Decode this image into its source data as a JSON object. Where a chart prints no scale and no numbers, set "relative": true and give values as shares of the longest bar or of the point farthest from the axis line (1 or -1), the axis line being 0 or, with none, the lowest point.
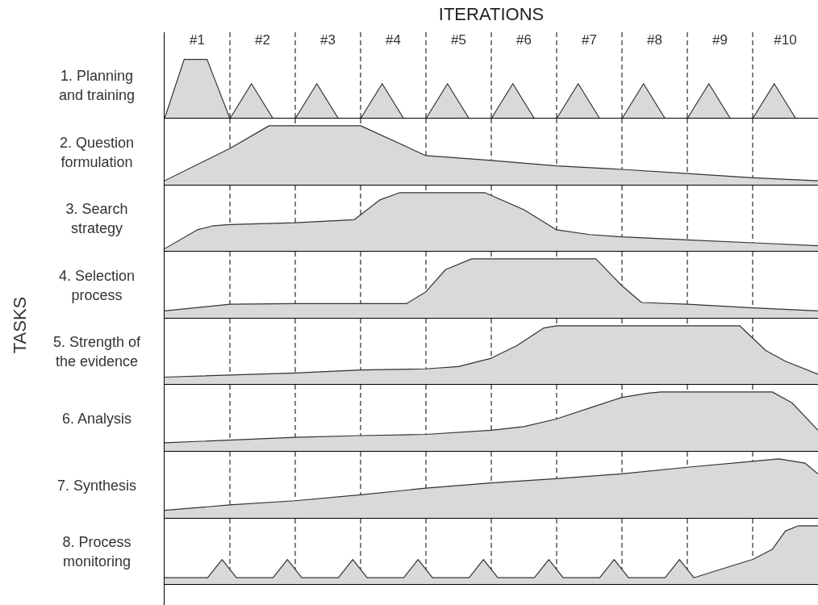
{
  "chart_data": [
    {
      "type": "area",
      "relative": true,
      "ylabel": "1. Planning and training",
      "xlabel": "ITERATIONS",
      "annotations": [
        "TASKS"
      ],
      "xlim": [
        0,
        10
      ],
      "xticks": [
        {
          "value": 0.5,
          "label": "#1"
        },
        {
          "value": 1.5,
          "label": "#2"
        },
        {
          "value": 2.5,
          "label": "#3"
        },
        {
          "value": 3.5,
          "label": "#4"
        },
        {
          "value": 4.5,
          "label": "#5"
        },
        {
          "value": 5.5,
          "label": "#6"
        },
        {
          "value": 6.5,
          "label": "#7"
        },
        {
          "value": 7.5,
          "label": "#8"
        },
        {
          "value": 8.5,
          "label": "#9"
        },
        {
          "value": 9.5,
          "label": "#10"
        }
      ],
      "tick_labels": "x",
      "color": "#d9d9d9",
      "ref_lines": [
        {
          "axis": "x",
          "value": 1,
          "line_style": "dashed"
        },
        {
          "axis": "x",
          "value": 2,
          "line_style": "dashed"
        },
        {
          "axis": "x",
          "value": 3,
          "line_style": "dashed"
        },
        {
          "axis": "x",
          "value": 4,
          "line_style": "dashed"
        },
        {
          "axis": "x",
          "value": 5,
          "line_style": "dashed"
        },
        {
          "axis": "x",
          "value": 6,
          "line_style": "dashed"
        },
        {
          "axis": "x",
          "value": 7,
          "line_style": "dashed"
        },
        {
          "axis": "x",
          "value": 8,
          "line_style": "dashed"
        },
        {
          "axis": "x",
          "value": 9,
          "line_style": "dashed"
        }
      ],
      "x": [
        0,
        0.3,
        0.65,
        1,
        1.33,
        1.66,
        2,
        2.33,
        2.66,
        3,
        3.33,
        3.66,
        4,
        4.33,
        4.66,
        5,
        5.33,
        5.66,
        6,
        6.33,
        6.66,
        7,
        7.33,
        7.66,
        8,
        8.33,
        8.66,
        9,
        9.33,
        9.66,
        10
      ],
      "values": [
        0,
        1,
        1,
        0,
        0.59,
        0,
        0,
        0.59,
        0,
        0,
        0.59,
        0,
        0,
        0.59,
        0,
        0,
        0.59,
        0,
        0,
        0.59,
        0,
        0,
        0.59,
        0,
        0,
        0.59,
        0,
        0,
        0.59,
        0,
        0
      ]
    },
    {
      "type": "area",
      "relative": true,
      "ylabel": "2. Question formulation",
      "xlim": [
        0,
        10
      ],
      "tick_labels": false,
      "color": "#d9d9d9",
      "ref_lines": [
        {
          "axis": "x",
          "value": 1,
          "line_style": "dashed"
        },
        {
          "axis": "x",
          "value": 2,
          "line_style": "dashed"
        },
        {
          "axis": "x",
          "value": 3,
          "line_style": "dashed"
        },
        {
          "axis": "x",
          "value": 4,
          "line_style": "dashed"
        },
        {
          "axis": "x",
          "value": 5,
          "line_style": "dashed"
        },
        {
          "axis": "x",
          "value": 6,
          "line_style": "dashed"
        },
        {
          "axis": "x",
          "value": 7,
          "line_style": "dashed"
        },
        {
          "axis": "x",
          "value": 8,
          "line_style": "dashed"
        },
        {
          "axis": "x",
          "value": 9,
          "line_style": "dashed"
        }
      ],
      "x": [
        0,
        1,
        1.6,
        3,
        4,
        5,
        6,
        7,
        8,
        9,
        10
      ],
      "values": [
        0.08,
        0.62,
        1,
        1,
        0.5,
        0.42,
        0.33,
        0.27,
        0.2,
        0.13,
        0.08
      ]
    },
    {
      "type": "area",
      "relative": true,
      "ylabel": "3. Search strategy",
      "xlim": [
        0,
        10
      ],
      "tick_labels": false,
      "color": "#d9d9d9",
      "ref_lines": [
        {
          "axis": "x",
          "value": 1,
          "line_style": "dashed"
        },
        {
          "axis": "x",
          "value": 2,
          "line_style": "dashed"
        },
        {
          "axis": "x",
          "value": 3,
          "line_style": "dashed"
        },
        {
          "axis": "x",
          "value": 4,
          "line_style": "dashed"
        },
        {
          "axis": "x",
          "value": 5,
          "line_style": "dashed"
        },
        {
          "axis": "x",
          "value": 6,
          "line_style": "dashed"
        },
        {
          "axis": "x",
          "value": 7,
          "line_style": "dashed"
        },
        {
          "axis": "x",
          "value": 8,
          "line_style": "dashed"
        },
        {
          "axis": "x",
          "value": 9,
          "line_style": "dashed"
        }
      ],
      "x": [
        0,
        0.5,
        0.75,
        1,
        2,
        2.9,
        3.3,
        3.6,
        4.9,
        5.5,
        6,
        6.5,
        7,
        8,
        9,
        10
      ],
      "values": [
        0.05,
        0.37,
        0.44,
        0.46,
        0.49,
        0.54,
        0.88,
        1,
        1,
        0.71,
        0.37,
        0.29,
        0.25,
        0.2,
        0.15,
        0.1
      ]
    },
    {
      "type": "area",
      "relative": true,
      "ylabel": "4. Selection process",
      "xlim": [
        0,
        10
      ],
      "tick_labels": false,
      "color": "#d9d9d9",
      "ref_lines": [
        {
          "axis": "x",
          "value": 1,
          "line_style": "dashed"
        },
        {
          "axis": "x",
          "value": 2,
          "line_style": "dashed"
        },
        {
          "axis": "x",
          "value": 3,
          "line_style": "dashed"
        },
        {
          "axis": "x",
          "value": 4,
          "line_style": "dashed"
        },
        {
          "axis": "x",
          "value": 5,
          "line_style": "dashed"
        },
        {
          "axis": "x",
          "value": 6,
          "line_style": "dashed"
        },
        {
          "axis": "x",
          "value": 7,
          "line_style": "dashed"
        },
        {
          "axis": "x",
          "value": 8,
          "line_style": "dashed"
        },
        {
          "axis": "x",
          "value": 9,
          "line_style": "dashed"
        }
      ],
      "x": [
        0,
        1,
        2,
        3.7,
        4,
        4.3,
        4.7,
        6.6,
        7,
        7.3,
        8,
        9,
        10
      ],
      "values": [
        0.13,
        0.24,
        0.25,
        0.25,
        0.45,
        0.82,
        1,
        1,
        0.55,
        0.27,
        0.24,
        0.18,
        0.13
      ]
    },
    {
      "type": "area",
      "relative": true,
      "ylabel": "5. Strength of the evidence",
      "xlim": [
        0,
        10
      ],
      "tick_labels": false,
      "color": "#d9d9d9",
      "ref_lines": [
        {
          "axis": "x",
          "value": 1,
          "line_style": "dashed"
        },
        {
          "axis": "x",
          "value": 2,
          "line_style": "dashed"
        },
        {
          "axis": "x",
          "value": 3,
          "line_style": "dashed"
        },
        {
          "axis": "x",
          "value": 4,
          "line_style": "dashed"
        },
        {
          "axis": "x",
          "value": 5,
          "line_style": "dashed"
        },
        {
          "axis": "x",
          "value": 6,
          "line_style": "dashed"
        },
        {
          "axis": "x",
          "value": 7,
          "line_style": "dashed"
        },
        {
          "axis": "x",
          "value": 8,
          "line_style": "dashed"
        },
        {
          "axis": "x",
          "value": 9,
          "line_style": "dashed"
        }
      ],
      "x": [
        0,
        2,
        3,
        4,
        4.5,
        5,
        5.4,
        5.8,
        6,
        8.8,
        9.2,
        9.5,
        10
      ],
      "values": [
        0.13,
        0.2,
        0.25,
        0.27,
        0.31,
        0.45,
        0.67,
        0.96,
        1,
        1,
        0.58,
        0.4,
        0.18
      ]
    },
    {
      "type": "area",
      "relative": true,
      "ylabel": "6. Analysis",
      "xlim": [
        0,
        10
      ],
      "tick_labels": false,
      "color": "#d9d9d9",
      "ref_lines": [
        {
          "axis": "x",
          "value": 1,
          "line_style": "dashed"
        },
        {
          "axis": "x",
          "value": 2,
          "line_style": "dashed"
        },
        {
          "axis": "x",
          "value": 3,
          "line_style": "dashed"
        },
        {
          "axis": "x",
          "value": 4,
          "line_style": "dashed"
        },
        {
          "axis": "x",
          "value": 5,
          "line_style": "dashed"
        },
        {
          "axis": "x",
          "value": 6,
          "line_style": "dashed"
        },
        {
          "axis": "x",
          "value": 7,
          "line_style": "dashed"
        },
        {
          "axis": "x",
          "value": 8,
          "line_style": "dashed"
        },
        {
          "axis": "x",
          "value": 9,
          "line_style": "dashed"
        }
      ],
      "x": [
        0,
        2,
        3,
        4,
        5,
        5.5,
        6,
        6.5,
        7,
        7.4,
        7.6,
        9.3,
        9.6,
        10
      ],
      "values": [
        0.15,
        0.24,
        0.27,
        0.29,
        0.36,
        0.42,
        0.55,
        0.73,
        0.91,
        0.98,
        1,
        1,
        0.82,
        0.36
      ]
    },
    {
      "type": "area",
      "relative": true,
      "ylabel": "7. Synthesis",
      "xlim": [
        0,
        10
      ],
      "tick_labels": false,
      "color": "#d9d9d9",
      "ref_lines": [
        {
          "axis": "x",
          "value": 1,
          "line_style": "dashed"
        },
        {
          "axis": "x",
          "value": 2,
          "line_style": "dashed"
        },
        {
          "axis": "x",
          "value": 3,
          "line_style": "dashed"
        },
        {
          "axis": "x",
          "value": 4,
          "line_style": "dashed"
        },
        {
          "axis": "x",
          "value": 5,
          "line_style": "dashed"
        },
        {
          "axis": "x",
          "value": 6,
          "line_style": "dashed"
        },
        {
          "axis": "x",
          "value": 7,
          "line_style": "dashed"
        },
        {
          "axis": "x",
          "value": 8,
          "line_style": "dashed"
        },
        {
          "axis": "x",
          "value": 9,
          "line_style": "dashed"
        }
      ],
      "x": [
        0,
        1,
        2,
        3,
        4,
        5,
        6,
        7,
        8,
        9,
        9.4,
        9.8,
        10
      ],
      "values": [
        0.14,
        0.23,
        0.3,
        0.4,
        0.51,
        0.6,
        0.67,
        0.75,
        0.86,
        0.96,
        1,
        0.93,
        0.75
      ]
    },
    {
      "type": "area",
      "relative": true,
      "ylabel": "8. Process monitoring",
      "xlim": [
        0,
        10
      ],
      "tick_labels": false,
      "color": "#d9d9d9",
      "ref_lines": [
        {
          "axis": "x",
          "value": 1,
          "line_style": "dashed"
        },
        {
          "axis": "x",
          "value": 2,
          "line_style": "dashed"
        },
        {
          "axis": "x",
          "value": 3,
          "line_style": "dashed"
        },
        {
          "axis": "x",
          "value": 4,
          "line_style": "dashed"
        },
        {
          "axis": "x",
          "value": 5,
          "line_style": "dashed"
        },
        {
          "axis": "x",
          "value": 6,
          "line_style": "dashed"
        },
        {
          "axis": "x",
          "value": 7,
          "line_style": "dashed"
        },
        {
          "axis": "x",
          "value": 8,
          "line_style": "dashed"
        },
        {
          "axis": "x",
          "value": 9,
          "line_style": "dashed"
        }
      ],
      "x": [
        0,
        0.66,
        0.88,
        1.1,
        1.66,
        1.88,
        2.1,
        2.66,
        2.88,
        3.1,
        3.66,
        3.88,
        4.1,
        4.66,
        4.88,
        5.1,
        5.66,
        5.88,
        6.1,
        6.66,
        6.88,
        7.1,
        7.66,
        7.88,
        8.1,
        8.5,
        9,
        9.3,
        9.5,
        9.7,
        10
      ],
      "values": [
        0.12,
        0.12,
        0.43,
        0.12,
        0.12,
        0.43,
        0.12,
        0.12,
        0.43,
        0.12,
        0.12,
        0.43,
        0.12,
        0.12,
        0.43,
        0.12,
        0.12,
        0.43,
        0.12,
        0.12,
        0.43,
        0.12,
        0.12,
        0.43,
        0.12,
        0.26,
        0.43,
        0.6,
        0.91,
        1,
        1
      ]
    }
  ]
}
